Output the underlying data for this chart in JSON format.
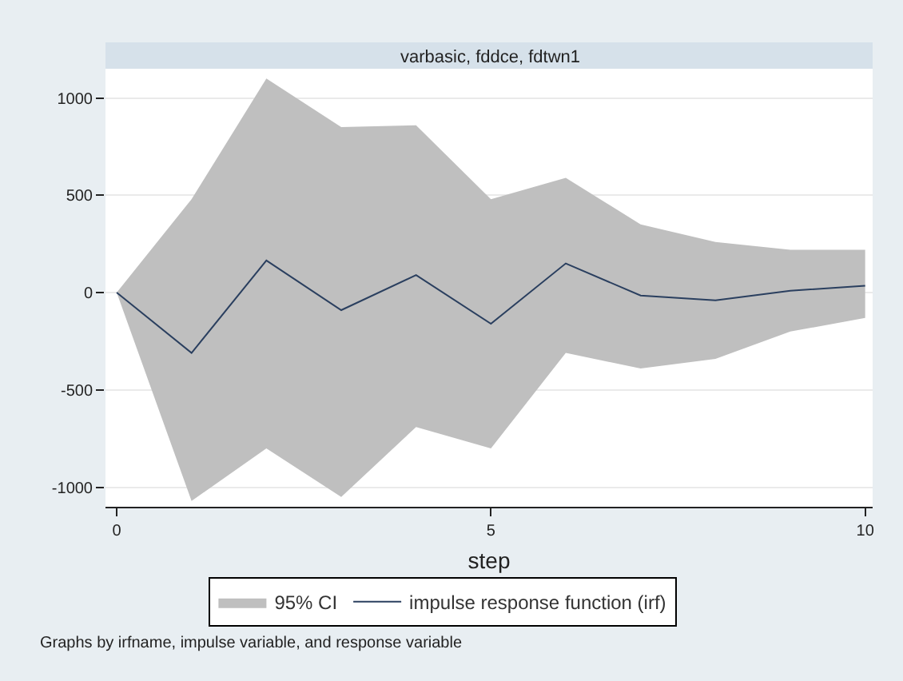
{
  "chart_data": {
    "type": "line",
    "title": "varbasic, fddce, fdtwn1",
    "xlabel": "step",
    "x": [
      0,
      1,
      2,
      3,
      4,
      5,
      6,
      7,
      8,
      9,
      10
    ],
    "series": [
      {
        "name": "impulse response function (irf)",
        "color": "#2a3f5f",
        "values": [
          0,
          -310,
          165,
          -90,
          90,
          -160,
          150,
          -15,
          -40,
          10,
          35
        ],
        "lower": [
          0,
          -1070,
          -800,
          -1050,
          -690,
          -800,
          -310,
          -390,
          -340,
          -200,
          -130
        ],
        "upper": [
          0,
          480,
          1100,
          850,
          860,
          480,
          590,
          350,
          260,
          220,
          220
        ]
      }
    ],
    "xlim": [
      -0.15,
      10.1
    ],
    "xticks": [
      0,
      5,
      10
    ],
    "ylim": [
      -1100,
      1150
    ],
    "yticks": [
      -1000,
      -500,
      0,
      500,
      1000
    ],
    "grid": "y",
    "legend": "bottom",
    "marker": "none",
    "line_style": "solid",
    "annotations": [
      "Graphs by irfname, impulse variable, and response variable",
      "95% CI"
    ]
  }
}
